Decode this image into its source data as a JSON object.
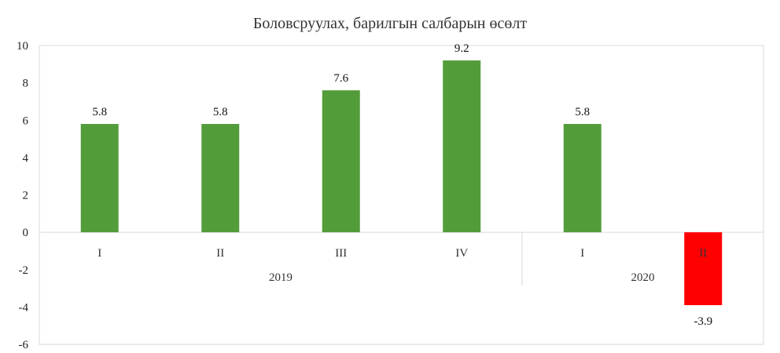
{
  "chart_data": {
    "type": "bar",
    "title": "Боловсруулах, барилгын салбарын өсөлт",
    "xlabel": "",
    "ylabel": "",
    "ylim": [
      -6,
      10
    ],
    "yticks": [
      10,
      8,
      6,
      4,
      2,
      0,
      -2,
      -4,
      -6
    ],
    "grid": false,
    "categories": [
      "I",
      "II",
      "III",
      "IV",
      "I",
      "II"
    ],
    "groups": [
      {
        "label": "2019",
        "count": 4
      },
      {
        "label": "2020",
        "count": 2
      }
    ],
    "values": [
      5.8,
      5.8,
      7.6,
      9.2,
      5.8,
      -3.9
    ],
    "data_labels": [
      "5.8",
      "5.8",
      "7.6",
      "9.2",
      "5.8",
      "-3.9"
    ],
    "colors": {
      "positive": "#539c3a",
      "negative": "#ff0000",
      "axis": "#d9d9d9"
    }
  }
}
